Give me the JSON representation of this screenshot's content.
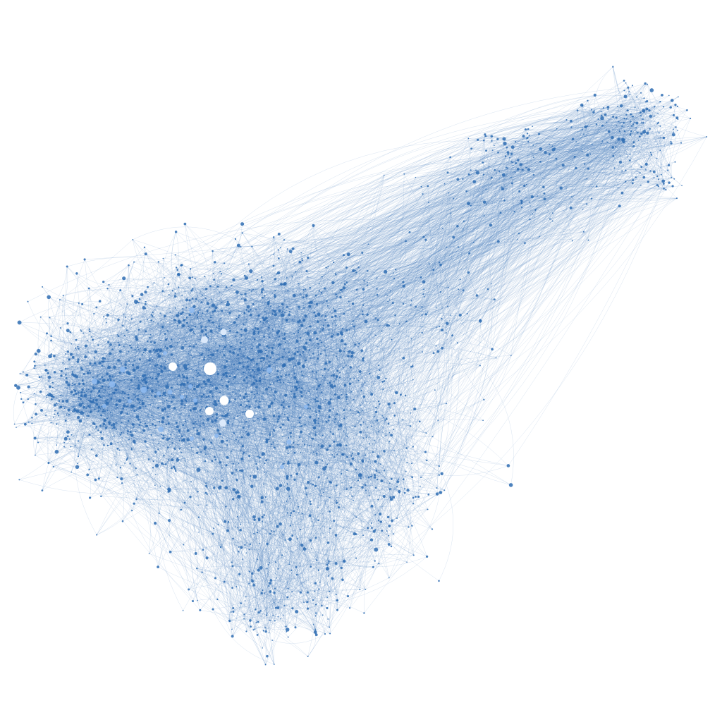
{
  "graph": {
    "type": "network",
    "layout": "force-directed",
    "background": "#ffffff",
    "edge_color": "#3a74b8",
    "node_color": "#2f6db3",
    "hub_color": "#ffffff",
    "mid_hub_color": "#8fbaf0",
    "title": "",
    "labels_visible": false,
    "clusters": [
      {
        "name": "main",
        "shape": "large dense cluster",
        "location": "left-center"
      },
      {
        "name": "arm",
        "shape": "elongated tail",
        "location": "upper-right"
      }
    ]
  }
}
